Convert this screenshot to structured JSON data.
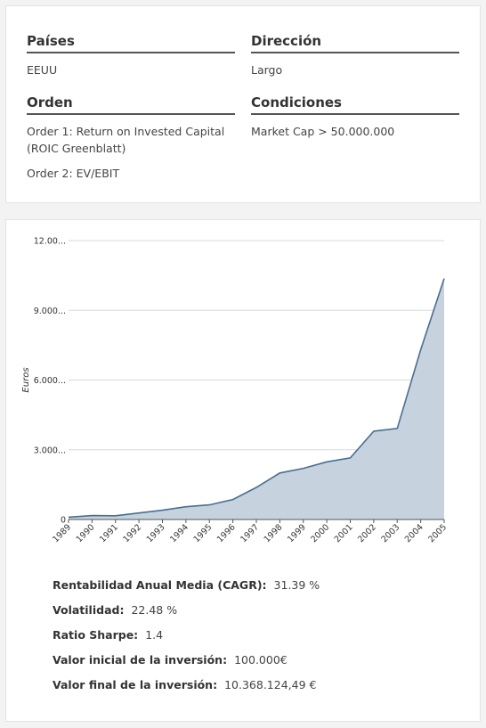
{
  "filters": {
    "paises": {
      "label": "Países",
      "value": "EEUU"
    },
    "direccion": {
      "label": "Dirección",
      "value": "Largo"
    },
    "orden": {
      "label": "Orden",
      "items": [
        "Order 1: Return on Invested Capital (ROIC Greenblatt)",
        "Order 2: EV/EBIT"
      ]
    },
    "condiciones": {
      "label": "Condiciones",
      "value": "Market Cap > 50.000.000"
    }
  },
  "chart_data": {
    "type": "area",
    "x": [
      "1989",
      "1990",
      "1991",
      "1992",
      "1993",
      "1994",
      "1995",
      "1996",
      "1997",
      "1998",
      "1999",
      "2000",
      "2001",
      "2002",
      "2003",
      "2004",
      "2005"
    ],
    "values": [
      100000,
      170000,
      160000,
      280000,
      400000,
      550000,
      630000,
      860000,
      1380000,
      2000000,
      2200000,
      2480000,
      2650000,
      3800000,
      3920000,
      7300000,
      10368124
    ],
    "ylabel": "Euros",
    "yticks": [
      "0",
      "3.000...",
      "6.000...",
      "9.000...",
      "12.00..."
    ],
    "ytick_values": [
      0,
      3000000,
      6000000,
      9000000,
      12000000
    ],
    "ylim": [
      0,
      12000000
    ],
    "grid": true,
    "colors": {
      "line": "#4a6e8f",
      "fill": "#c6d3df",
      "grid": "#d9d9d9"
    }
  },
  "stats": [
    {
      "label": "Rentabilidad Anual Media (CAGR):",
      "value": "31.39 %"
    },
    {
      "label": "Volatilidad:",
      "value": "22.48 %"
    },
    {
      "label": "Ratio Sharpe:",
      "value": "1.4"
    },
    {
      "label": "Valor inicial de la inversión:",
      "value": "100.000€"
    },
    {
      "label": "Valor final de la inversión:",
      "value": "10.368.124,49 €"
    }
  ]
}
